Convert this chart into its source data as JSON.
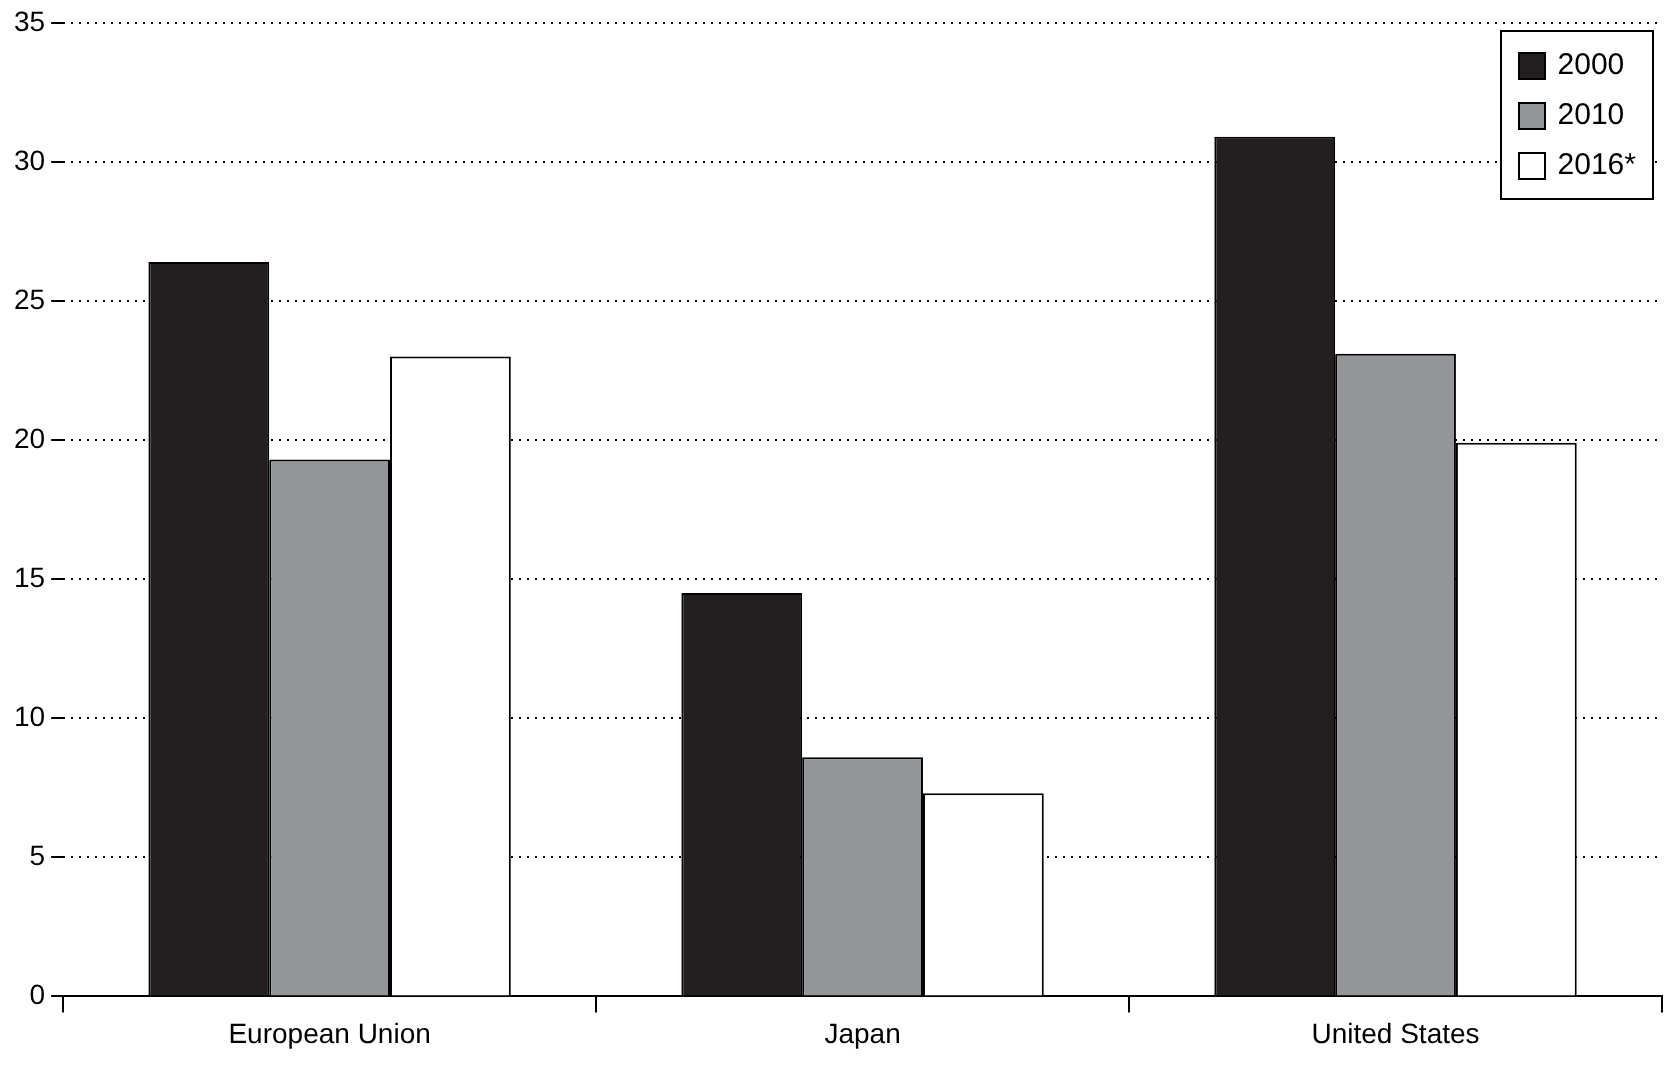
{
  "chart_data": {
    "type": "bar",
    "categories": [
      "European Union",
      "Japan",
      "United States"
    ],
    "series": [
      {
        "name": "2000",
        "color": "#231f20",
        "values": [
          26.4,
          14.5,
          30.9
        ]
      },
      {
        "name": "2010",
        "color": "#939598",
        "values": [
          19.3,
          8.6,
          23.1
        ]
      },
      {
        "name": "2016*",
        "color": "#ffffff",
        "values": [
          23.0,
          7.3,
          19.9
        ]
      }
    ],
    "ylim": [
      0,
      35
    ],
    "yticks": [
      0,
      5,
      10,
      15,
      20,
      25,
      30,
      35
    ],
    "grid": "y",
    "legend": "top right"
  }
}
